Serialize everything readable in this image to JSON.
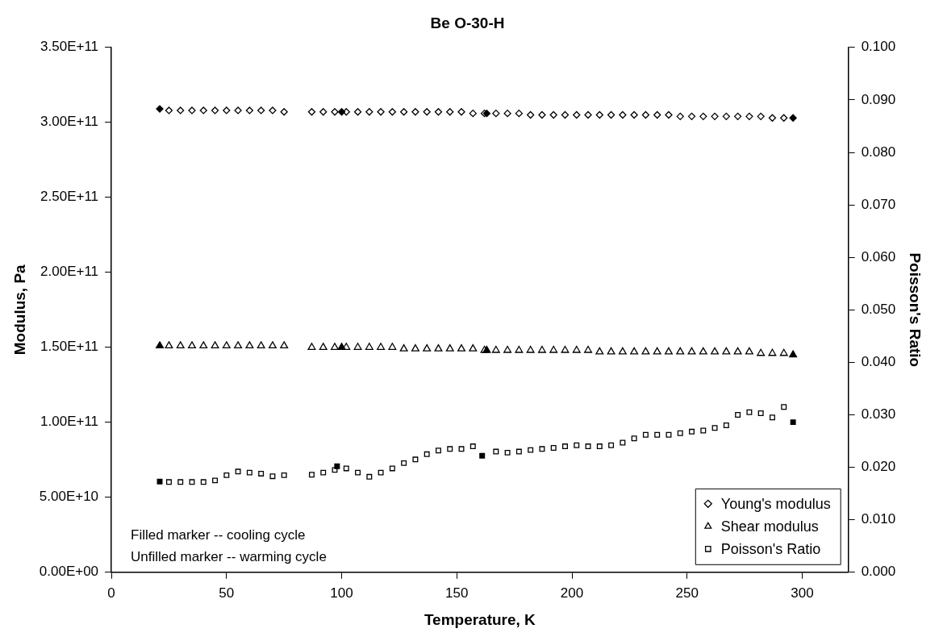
{
  "chart_data": {
    "type": "scatter",
    "title": "Be O-30-H",
    "xlabel": "Temperature, K",
    "ylabel": "Modulus, Pa",
    "y2label": "Poisson's Ratio",
    "xlim": [
      0,
      320
    ],
    "xticks": [
      0,
      50,
      100,
      150,
      200,
      250,
      300
    ],
    "ylim": [
      0,
      350000000000.0
    ],
    "yticks": [
      {
        "value": 0,
        "label": "0.00E+00"
      },
      {
        "value": 50000000000.0,
        "label": "5.00E+10"
      },
      {
        "value": 100000000000.0,
        "label": "1.00E+11"
      },
      {
        "value": 150000000000.0,
        "label": "1.50E+11"
      },
      {
        "value": 200000000000.0,
        "label": "2.00E+11"
      },
      {
        "value": 250000000000.0,
        "label": "2.50E+11"
      },
      {
        "value": 300000000000.0,
        "label": "3.00E+11"
      },
      {
        "value": 350000000000.0,
        "label": "3.50E+11"
      }
    ],
    "y2lim": [
      0,
      0.1
    ],
    "y2ticks": [
      {
        "value": 0,
        "label": "0.000"
      },
      {
        "value": 0.01,
        "label": "0.010"
      },
      {
        "value": 0.02,
        "label": "0.020"
      },
      {
        "value": 0.03,
        "label": "0.030"
      },
      {
        "value": 0.04,
        "label": "0.040"
      },
      {
        "value": 0.05,
        "label": "0.050"
      },
      {
        "value": 0.06,
        "label": "0.060"
      },
      {
        "value": 0.07,
        "label": "0.070"
      },
      {
        "value": 0.08,
        "label": "0.080"
      },
      {
        "value": 0.09,
        "label": "0.090"
      },
      {
        "value": 0.1,
        "label": "0.100"
      }
    ],
    "grid": false,
    "legend": "bottom right",
    "annotations": [
      "Filled marker -- cooling cycle",
      "Unfilled marker -- warming cycle"
    ],
    "series": [
      {
        "name": "Young's modulus",
        "color": "#000000",
        "marker": "diamond",
        "x": [
          25,
          30,
          35,
          40,
          45,
          50,
          55,
          60,
          65,
          70,
          75,
          87,
          92,
          97,
          102,
          107,
          112,
          117,
          122,
          127,
          132,
          137,
          142,
          147,
          152,
          157,
          162,
          167,
          172,
          177,
          182,
          187,
          192,
          197,
          202,
          207,
          212,
          217,
          222,
          227,
          232,
          237,
          242,
          247,
          252,
          257,
          262,
          267,
          272,
          277,
          282,
          287,
          292
        ],
        "values": [
          308000000000.0,
          308000000000.0,
          308000000000.0,
          308000000000.0,
          308000000000.0,
          308000000000.0,
          308000000000.0,
          308000000000.0,
          308000000000.0,
          308000000000.0,
          307000000000.0,
          307000000000.0,
          307000000000.0,
          307000000000.0,
          307000000000.0,
          307000000000.0,
          307000000000.0,
          307000000000.0,
          307000000000.0,
          307000000000.0,
          307000000000.0,
          307000000000.0,
          307000000000.0,
          307000000000.0,
          307000000000.0,
          306000000000.0,
          306000000000.0,
          306000000000.0,
          306000000000.0,
          306000000000.0,
          305000000000.0,
          305000000000.0,
          305000000000.0,
          305000000000.0,
          305000000000.0,
          305000000000.0,
          305000000000.0,
          305000000000.0,
          305000000000.0,
          305000000000.0,
          305000000000.0,
          305000000000.0,
          305000000000.0,
          304000000000.0,
          304000000000.0,
          304000000000.0,
          304000000000.0,
          304000000000.0,
          304000000000.0,
          304000000000.0,
          304000000000.0,
          303000000000.0,
          303000000000.0
        ]
      },
      {
        "name": "Shear modulus",
        "color": "#000000",
        "marker": "triangle",
        "x": [
          25,
          30,
          35,
          40,
          45,
          50,
          55,
          60,
          65,
          70,
          75,
          87,
          92,
          97,
          102,
          107,
          112,
          117,
          122,
          127,
          132,
          137,
          142,
          147,
          152,
          157,
          162,
          167,
          172,
          177,
          182,
          187,
          192,
          197,
          202,
          207,
          212,
          217,
          222,
          227,
          232,
          237,
          242,
          247,
          252,
          257,
          262,
          267,
          272,
          277,
          282,
          287,
          292
        ],
        "values": [
          151000000000.0,
          151000000000.0,
          151000000000.0,
          151000000000.0,
          151000000000.0,
          151000000000.0,
          151000000000.0,
          151000000000.0,
          151000000000.0,
          151000000000.0,
          151000000000.0,
          150000000000.0,
          150000000000.0,
          150000000000.0,
          150000000000.0,
          150000000000.0,
          150000000000.0,
          150000000000.0,
          150000000000.0,
          149000000000.0,
          149000000000.0,
          149000000000.0,
          149000000000.0,
          149000000000.0,
          149000000000.0,
          149000000000.0,
          148000000000.0,
          148000000000.0,
          148000000000.0,
          148000000000.0,
          148000000000.0,
          148000000000.0,
          148000000000.0,
          148000000000.0,
          148000000000.0,
          148000000000.0,
          147000000000.0,
          147000000000.0,
          147000000000.0,
          147000000000.0,
          147000000000.0,
          147000000000.0,
          147000000000.0,
          147000000000.0,
          147000000000.0,
          147000000000.0,
          147000000000.0,
          147000000000.0,
          147000000000.0,
          147000000000.0,
          146000000000.0,
          146000000000.0,
          146000000000.0
        ]
      },
      {
        "name": "Poisson's Ratio",
        "color": "#000000",
        "marker": "square",
        "axis": "y2",
        "x": [
          25,
          30,
          35,
          40,
          45,
          50,
          55,
          60,
          65,
          70,
          75,
          87,
          92,
          97,
          102,
          107,
          112,
          117,
          122,
          127,
          132,
          137,
          142,
          147,
          152,
          157,
          167,
          172,
          177,
          182,
          187,
          192,
          197,
          202,
          207,
          212,
          217,
          222,
          227,
          232,
          237,
          242,
          247,
          252,
          257,
          262,
          267,
          272,
          277,
          282,
          287,
          292
        ],
        "values": [
          0.0172,
          0.0172,
          0.0172,
          0.0172,
          0.0175,
          0.0185,
          0.0192,
          0.019,
          0.0188,
          0.0183,
          0.0185,
          0.0186,
          0.019,
          0.0195,
          0.0198,
          0.019,
          0.0182,
          0.019,
          0.0198,
          0.0208,
          0.0215,
          0.0225,
          0.0232,
          0.0235,
          0.0235,
          0.024,
          0.023,
          0.0228,
          0.023,
          0.0233,
          0.0235,
          0.0237,
          0.024,
          0.0242,
          0.024,
          0.024,
          0.0242,
          0.0247,
          0.0255,
          0.0262,
          0.0262,
          0.0262,
          0.0265,
          0.0268,
          0.027,
          0.0275,
          0.028,
          0.03,
          0.0305,
          0.0303,
          0.0295,
          0.0315
        ]
      },
      {
        "color": "#000000",
        "marker": "diamond",
        "x": [
          21,
          100,
          163,
          296
        ],
        "values": [
          309000000000.0,
          307000000000.0,
          306000000000.0,
          303000000000.0
        ]
      },
      {
        "color": "#000000",
        "marker": "triangle",
        "x": [
          21,
          100,
          163,
          296
        ],
        "values": [
          151000000000.0,
          150000000000.0,
          148000000000.0,
          145000000000.0
        ]
      },
      {
        "color": "#000000",
        "marker": "square",
        "axis": "y2",
        "x": [
          21,
          98,
          161,
          296
        ],
        "values": [
          0.0173,
          0.0202,
          0.0222,
          0.0286
        ]
      }
    ]
  }
}
